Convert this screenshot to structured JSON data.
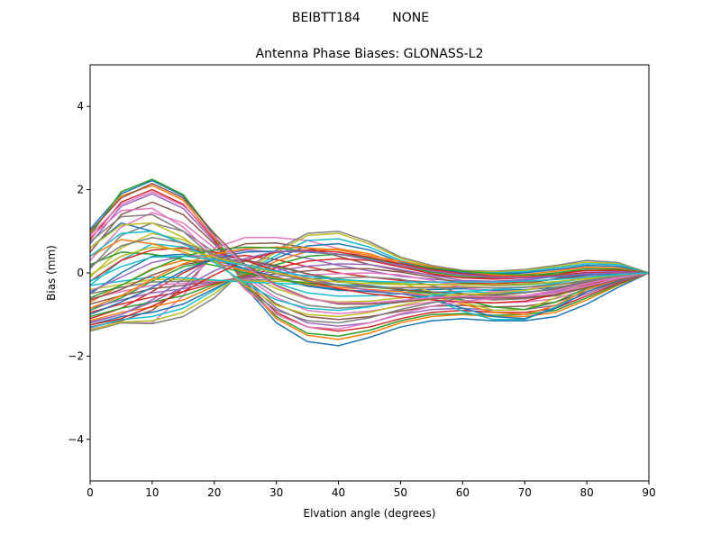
{
  "figure": {
    "suptitle": "BEIBTT184        NONE"
  },
  "chart_data": {
    "type": "line",
    "title": "Antenna Phase Biases: GLONASS-L2",
    "xlabel": "Elvation angle (degrees)",
    "ylabel": "Bias (mm)",
    "xlim": [
      0,
      90
    ],
    "ylim": [
      -5,
      5
    ],
    "xticks": [
      0,
      10,
      20,
      30,
      40,
      50,
      60,
      70,
      80,
      90
    ],
    "yticks": [
      -4,
      -2,
      0,
      2,
      4
    ],
    "ytick_labels": [
      "−4",
      "−2",
      "0",
      "2",
      "4"
    ],
    "grid": false,
    "legend": "none",
    "x": [
      0,
      5,
      10,
      15,
      20,
      25,
      30,
      35,
      40,
      45,
      50,
      55,
      60,
      65,
      70,
      75,
      80,
      85,
      90
    ],
    "colors": [
      "#1f77b4",
      "#ff7f0e",
      "#2ca02c",
      "#d62728",
      "#9467bd",
      "#8c564b",
      "#e377c2",
      "#7f7f7f",
      "#bcbd22",
      "#17becf"
    ],
    "series": [
      {
        "values": [
          1.05,
          1.9,
          2.22,
          1.85,
          0.9,
          -0.35,
          -1.2,
          -1.65,
          -1.75,
          -1.55,
          -1.3,
          -1.15,
          -1.1,
          -1.15,
          -1.15,
          -1.05,
          -0.75,
          -0.35,
          0
        ]
      },
      {
        "values": [
          0.95,
          1.85,
          2.1,
          1.75,
          0.85,
          -0.3,
          -1.1,
          -1.5,
          -1.6,
          -1.45,
          -1.2,
          -1.05,
          -1.0,
          -1.05,
          -1.05,
          -0.95,
          -0.65,
          -0.3,
          0
        ]
      },
      {
        "values": [
          0.9,
          1.95,
          2.25,
          1.88,
          0.92,
          -0.28,
          -1.05,
          -1.45,
          -1.52,
          -1.38,
          -1.15,
          -1.0,
          -0.98,
          -1.02,
          -1.0,
          -0.9,
          -0.6,
          -0.28,
          0
        ]
      },
      {
        "values": [
          0.8,
          1.7,
          2.0,
          1.65,
          0.8,
          -0.25,
          -0.95,
          -1.3,
          -1.4,
          -1.3,
          -1.1,
          -0.95,
          -0.9,
          -0.95,
          -0.95,
          -0.85,
          -0.55,
          -0.25,
          0
        ]
      },
      {
        "values": [
          0.7,
          1.6,
          1.9,
          1.55,
          0.75,
          -0.2,
          -0.85,
          -1.2,
          -1.28,
          -1.2,
          -1.0,
          -0.88,
          -0.85,
          -0.9,
          -0.88,
          -0.78,
          -0.5,
          -0.22,
          0
        ]
      },
      {
        "values": [
          0.5,
          1.4,
          1.7,
          1.4,
          0.7,
          -0.15,
          -0.75,
          -1.05,
          -1.12,
          -1.05,
          -0.92,
          -0.8,
          -0.78,
          -0.82,
          -0.8,
          -0.7,
          -0.45,
          -0.2,
          0
        ]
      },
      {
        "values": [
          0.3,
          1.1,
          1.45,
          1.2,
          0.6,
          -0.1,
          -0.6,
          -0.9,
          -0.98,
          -0.92,
          -0.8,
          -0.7,
          -0.68,
          -0.72,
          -0.7,
          -0.62,
          -0.4,
          -0.18,
          0
        ]
      },
      {
        "values": [
          0.1,
          0.9,
          1.2,
          1.0,
          0.5,
          -0.05,
          -0.5,
          -0.78,
          -0.85,
          -0.8,
          -0.7,
          -0.62,
          -0.6,
          -0.65,
          -0.62,
          -0.55,
          -0.35,
          -0.15,
          0
        ]
      },
      {
        "values": [
          -0.1,
          0.6,
          0.95,
          0.8,
          0.42,
          0.0,
          -0.38,
          -0.62,
          -0.7,
          -0.68,
          -0.6,
          -0.55,
          -0.52,
          -0.56,
          -0.55,
          -0.48,
          -0.3,
          -0.12,
          0
        ]
      },
      {
        "values": [
          -0.3,
          0.3,
          0.7,
          0.62,
          0.35,
          0.05,
          -0.25,
          -0.48,
          -0.56,
          -0.55,
          -0.5,
          -0.46,
          -0.44,
          -0.48,
          -0.46,
          -0.4,
          -0.26,
          -0.1,
          0
        ]
      },
      {
        "values": [
          -0.5,
          0.0,
          0.4,
          0.45,
          0.3,
          0.1,
          -0.12,
          -0.32,
          -0.42,
          -0.44,
          -0.42,
          -0.4,
          -0.38,
          -0.42,
          -0.4,
          -0.35,
          -0.22,
          -0.08,
          0
        ]
      },
      {
        "values": [
          -0.7,
          -0.3,
          0.1,
          0.3,
          0.28,
          0.18,
          0.0,
          -0.18,
          -0.3,
          -0.34,
          -0.35,
          -0.34,
          -0.33,
          -0.36,
          -0.35,
          -0.3,
          -0.18,
          -0.06,
          0
        ]
      },
      {
        "values": [
          -0.9,
          -0.6,
          -0.2,
          0.15,
          0.3,
          0.28,
          0.15,
          -0.02,
          -0.15,
          -0.22,
          -0.26,
          -0.28,
          -0.28,
          -0.3,
          -0.28,
          -0.22,
          -0.12,
          -0.04,
          0
        ]
      },
      {
        "values": [
          -1.1,
          -0.85,
          -0.45,
          0.0,
          0.35,
          0.42,
          0.32,
          0.15,
          0.0,
          -0.1,
          -0.18,
          -0.22,
          -0.24,
          -0.26,
          -0.22,
          -0.15,
          -0.06,
          -0.02,
          0
        ]
      },
      {
        "values": [
          -1.2,
          -1.0,
          -0.65,
          -0.15,
          0.4,
          0.55,
          0.5,
          0.35,
          0.18,
          0.05,
          -0.08,
          -0.15,
          -0.2,
          -0.2,
          -0.16,
          -0.08,
          0.0,
          0.02,
          0
        ]
      },
      {
        "values": [
          -1.3,
          -1.15,
          -0.9,
          -0.35,
          0.45,
          0.7,
          0.72,
          0.6,
          0.4,
          0.2,
          0.05,
          -0.05,
          -0.12,
          -0.12,
          -0.08,
          0.0,
          0.06,
          0.06,
          0
        ]
      },
      {
        "values": [
          -1.35,
          -1.2,
          -1.2,
          -0.55,
          0.6,
          0.85,
          0.85,
          0.78,
          0.58,
          0.35,
          0.15,
          0.02,
          -0.04,
          -0.04,
          0.0,
          0.08,
          0.14,
          0.12,
          0
        ]
      },
      {
        "values": [
          -1.4,
          -1.2,
          -1.22,
          -1.05,
          -0.6,
          0.1,
          0.55,
          0.95,
          1.0,
          0.75,
          0.38,
          0.18,
          0.06,
          0.04,
          0.08,
          0.18,
          0.3,
          0.25,
          0
        ]
      },
      {
        "values": [
          -1.38,
          -1.18,
          -1.15,
          -0.95,
          -0.5,
          0.05,
          0.5,
          0.9,
          0.95,
          0.7,
          0.35,
          0.15,
          0.04,
          0.02,
          0.06,
          0.15,
          0.26,
          0.22,
          0
        ]
      },
      {
        "values": [
          -1.32,
          -1.12,
          -1.05,
          -0.85,
          -0.42,
          0.02,
          0.42,
          0.78,
          0.82,
          0.62,
          0.3,
          0.12,
          0.02,
          0.0,
          0.03,
          0.12,
          0.22,
          0.2,
          0
        ]
      },
      {
        "values": [
          -1.25,
          -1.05,
          -0.95,
          -0.75,
          -0.38,
          0.0,
          0.35,
          0.65,
          0.7,
          0.55,
          0.26,
          0.1,
          0.0,
          -0.02,
          0.0,
          0.08,
          0.18,
          0.16,
          0
        ]
      },
      {
        "values": [
          -1.15,
          -0.95,
          -0.82,
          -0.65,
          -0.32,
          -0.02,
          0.28,
          0.52,
          0.58,
          0.46,
          0.22,
          0.06,
          -0.04,
          -0.06,
          -0.04,
          0.04,
          0.14,
          0.12,
          0
        ]
      },
      {
        "values": [
          -1.05,
          -0.85,
          -0.7,
          -0.55,
          -0.28,
          -0.05,
          0.2,
          0.4,
          0.45,
          0.38,
          0.18,
          0.02,
          -0.08,
          -0.1,
          -0.08,
          0.0,
          0.1,
          0.09,
          0
        ]
      },
      {
        "values": [
          -0.95,
          -0.75,
          -0.58,
          -0.45,
          -0.25,
          -0.08,
          0.12,
          0.28,
          0.34,
          0.3,
          0.14,
          -0.02,
          -0.12,
          -0.15,
          -0.12,
          -0.04,
          0.06,
          0.06,
          0
        ]
      },
      {
        "values": [
          -0.85,
          -0.65,
          -0.48,
          -0.38,
          -0.22,
          -0.1,
          0.05,
          0.16,
          0.22,
          0.2,
          0.08,
          -0.06,
          -0.18,
          -0.2,
          -0.18,
          -0.08,
          0.02,
          0.03,
          0
        ]
      },
      {
        "values": [
          -0.75,
          -0.55,
          -0.38,
          -0.3,
          -0.2,
          -0.12,
          -0.02,
          0.05,
          0.1,
          0.1,
          0.02,
          -0.1,
          -0.25,
          -0.3,
          -0.26,
          -0.14,
          -0.02,
          0.0,
          0
        ]
      },
      {
        "values": [
          -0.62,
          -0.45,
          -0.3,
          -0.25,
          -0.2,
          -0.15,
          -0.08,
          -0.05,
          -0.02,
          0.0,
          -0.05,
          -0.18,
          -0.35,
          -0.45,
          -0.42,
          -0.25,
          -0.08,
          -0.03,
          0
        ]
      },
      {
        "values": [
          -0.5,
          -0.35,
          -0.22,
          -0.2,
          -0.18,
          -0.18,
          -0.15,
          -0.15,
          -0.12,
          -0.1,
          -0.15,
          -0.3,
          -0.5,
          -0.65,
          -0.62,
          -0.4,
          -0.15,
          -0.06,
          0
        ]
      },
      {
        "values": [
          -0.4,
          -0.28,
          -0.16,
          -0.16,
          -0.18,
          -0.2,
          -0.2,
          -0.22,
          -0.2,
          -0.2,
          -0.25,
          -0.45,
          -0.7,
          -0.9,
          -0.88,
          -0.6,
          -0.25,
          -0.1,
          0
        ]
      },
      {
        "values": [
          -0.3,
          -0.2,
          -0.1,
          -0.12,
          -0.17,
          -0.22,
          -0.25,
          -0.28,
          -0.28,
          -0.3,
          -0.38,
          -0.62,
          -0.92,
          -1.12,
          -1.12,
          -0.82,
          -0.38,
          -0.14,
          0
        ]
      },
      {
        "values": [
          0.6,
          1.2,
          1.0,
          0.7,
          0.35,
          0.1,
          -0.1,
          -0.3,
          -0.4,
          -0.45,
          -0.5,
          -0.62,
          -0.85,
          -1.05,
          -1.1,
          -0.85,
          -0.45,
          -0.18,
          0
        ]
      },
      {
        "values": [
          0.4,
          0.8,
          0.7,
          0.5,
          0.25,
          0.05,
          -0.12,
          -0.28,
          -0.35,
          -0.4,
          -0.45,
          -0.55,
          -0.75,
          -0.95,
          -1.0,
          -0.78,
          -0.4,
          -0.16,
          0
        ]
      },
      {
        "values": [
          0.2,
          0.5,
          0.45,
          0.32,
          0.18,
          0.0,
          -0.15,
          -0.25,
          -0.3,
          -0.34,
          -0.4,
          -0.5,
          -0.65,
          -0.82,
          -0.88,
          -0.7,
          -0.36,
          -0.14,
          0
        ]
      },
      {
        "values": [
          -0.2,
          0.3,
          0.55,
          0.6,
          0.5,
          0.3,
          0.05,
          -0.2,
          -0.38,
          -0.5,
          -0.58,
          -0.65,
          -0.7,
          -0.72,
          -0.68,
          -0.52,
          -0.3,
          -0.12,
          0
        ]
      },
      {
        "values": [
          -0.45,
          -0.1,
          0.25,
          0.4,
          0.42,
          0.32,
          0.12,
          -0.12,
          -0.3,
          -0.42,
          -0.5,
          -0.56,
          -0.6,
          -0.62,
          -0.58,
          -0.45,
          -0.26,
          -0.1,
          0
        ]
      },
      {
        "values": [
          -0.65,
          -0.4,
          -0.05,
          0.2,
          0.32,
          0.3,
          0.18,
          -0.02,
          -0.2,
          -0.32,
          -0.4,
          -0.46,
          -0.5,
          -0.52,
          -0.48,
          -0.38,
          -0.22,
          -0.08,
          0
        ]
      },
      {
        "values": [
          0.85,
          1.5,
          1.55,
          1.1,
          0.4,
          -0.4,
          -1.0,
          -1.3,
          -1.35,
          -1.2,
          -0.98,
          -0.8,
          -0.68,
          -0.62,
          -0.55,
          -0.42,
          -0.25,
          -0.1,
          0
        ]
      },
      {
        "values": [
          0.75,
          1.35,
          1.4,
          1.0,
          0.35,
          -0.35,
          -0.9,
          -1.15,
          -1.2,
          -1.08,
          -0.88,
          -0.72,
          -0.6,
          -0.55,
          -0.48,
          -0.36,
          -0.2,
          -0.08,
          0
        ]
      },
      {
        "values": [
          0.6,
          1.15,
          1.2,
          0.85,
          0.3,
          -0.3,
          -0.78,
          -1.0,
          -1.05,
          -0.95,
          -0.78,
          -0.63,
          -0.52,
          -0.48,
          -0.42,
          -0.3,
          -0.16,
          -0.06,
          0
        ]
      },
      {
        "values": [
          0.4,
          0.95,
          1.0,
          0.72,
          0.25,
          -0.25,
          -0.65,
          -0.85,
          -0.9,
          -0.82,
          -0.68,
          -0.55,
          -0.45,
          -0.4,
          -0.35,
          -0.25,
          -0.12,
          -0.04,
          0
        ]
      },
      {
        "values": [
          -1.0,
          -0.7,
          -0.35,
          0.05,
          0.35,
          0.5,
          0.52,
          0.5,
          0.45,
          0.35,
          0.22,
          0.1,
          0.0,
          -0.08,
          -0.12,
          -0.1,
          -0.05,
          -0.02,
          0
        ]
      },
      {
        "values": [
          -0.85,
          -0.55,
          -0.15,
          0.22,
          0.45,
          0.58,
          0.62,
          0.6,
          0.55,
          0.42,
          0.28,
          0.15,
          0.04,
          -0.04,
          -0.08,
          -0.06,
          -0.02,
          0.0,
          0
        ]
      },
      {
        "values": [
          -0.6,
          -0.3,
          0.08,
          0.4,
          0.55,
          0.62,
          0.6,
          0.52,
          0.45,
          0.34,
          0.22,
          0.12,
          0.04,
          -0.02,
          -0.05,
          -0.04,
          -0.01,
          0.0,
          0
        ]
      },
      {
        "values": [
          -1.25,
          -1.1,
          -0.8,
          -0.45,
          -0.05,
          0.3,
          0.5,
          0.55,
          0.5,
          0.38,
          0.22,
          0.08,
          -0.02,
          -0.08,
          -0.1,
          -0.06,
          0.0,
          0.01,
          0
        ]
      },
      {
        "values": [
          -1.18,
          -1.0,
          -0.7,
          -0.35,
          0.05,
          0.35,
          0.52,
          0.52,
          0.45,
          0.32,
          0.18,
          0.05,
          -0.05,
          -0.1,
          -0.12,
          -0.08,
          -0.02,
          0.0,
          0
        ]
      },
      {
        "values": [
          1.0,
          1.8,
          2.15,
          1.8,
          0.95,
          0.2,
          -0.3,
          -0.6,
          -0.75,
          -0.75,
          -0.7,
          -0.62,
          -0.58,
          -0.6,
          -0.6,
          -0.52,
          -0.35,
          -0.15,
          0
        ]
      },
      {
        "values": [
          0.9,
          1.65,
          1.95,
          1.62,
          0.88,
          0.15,
          -0.32,
          -0.62,
          -0.72,
          -0.72,
          -0.66,
          -0.6,
          -0.56,
          -0.58,
          -0.56,
          -0.48,
          -0.32,
          -0.13,
          0
        ]
      },
      {
        "values": [
          0.15,
          0.65,
          0.85,
          0.72,
          0.45,
          0.2,
          -0.02,
          -0.2,
          -0.3,
          -0.35,
          -0.36,
          -0.36,
          -0.35,
          -0.36,
          -0.34,
          -0.28,
          -0.18,
          -0.07,
          0
        ]
      },
      {
        "values": [
          -0.05,
          0.4,
          0.62,
          0.56,
          0.38,
          0.18,
          0.0,
          -0.14,
          -0.22,
          -0.26,
          -0.28,
          -0.28,
          -0.28,
          -0.28,
          -0.26,
          -0.21,
          -0.13,
          -0.05,
          0
        ]
      },
      {
        "values": [
          -0.2,
          0.15,
          0.38,
          0.4,
          0.32,
          0.18,
          0.04,
          -0.08,
          -0.16,
          -0.2,
          -0.22,
          -0.22,
          -0.22,
          -0.22,
          -0.2,
          -0.16,
          -0.1,
          -0.04,
          0
        ]
      }
    ]
  }
}
